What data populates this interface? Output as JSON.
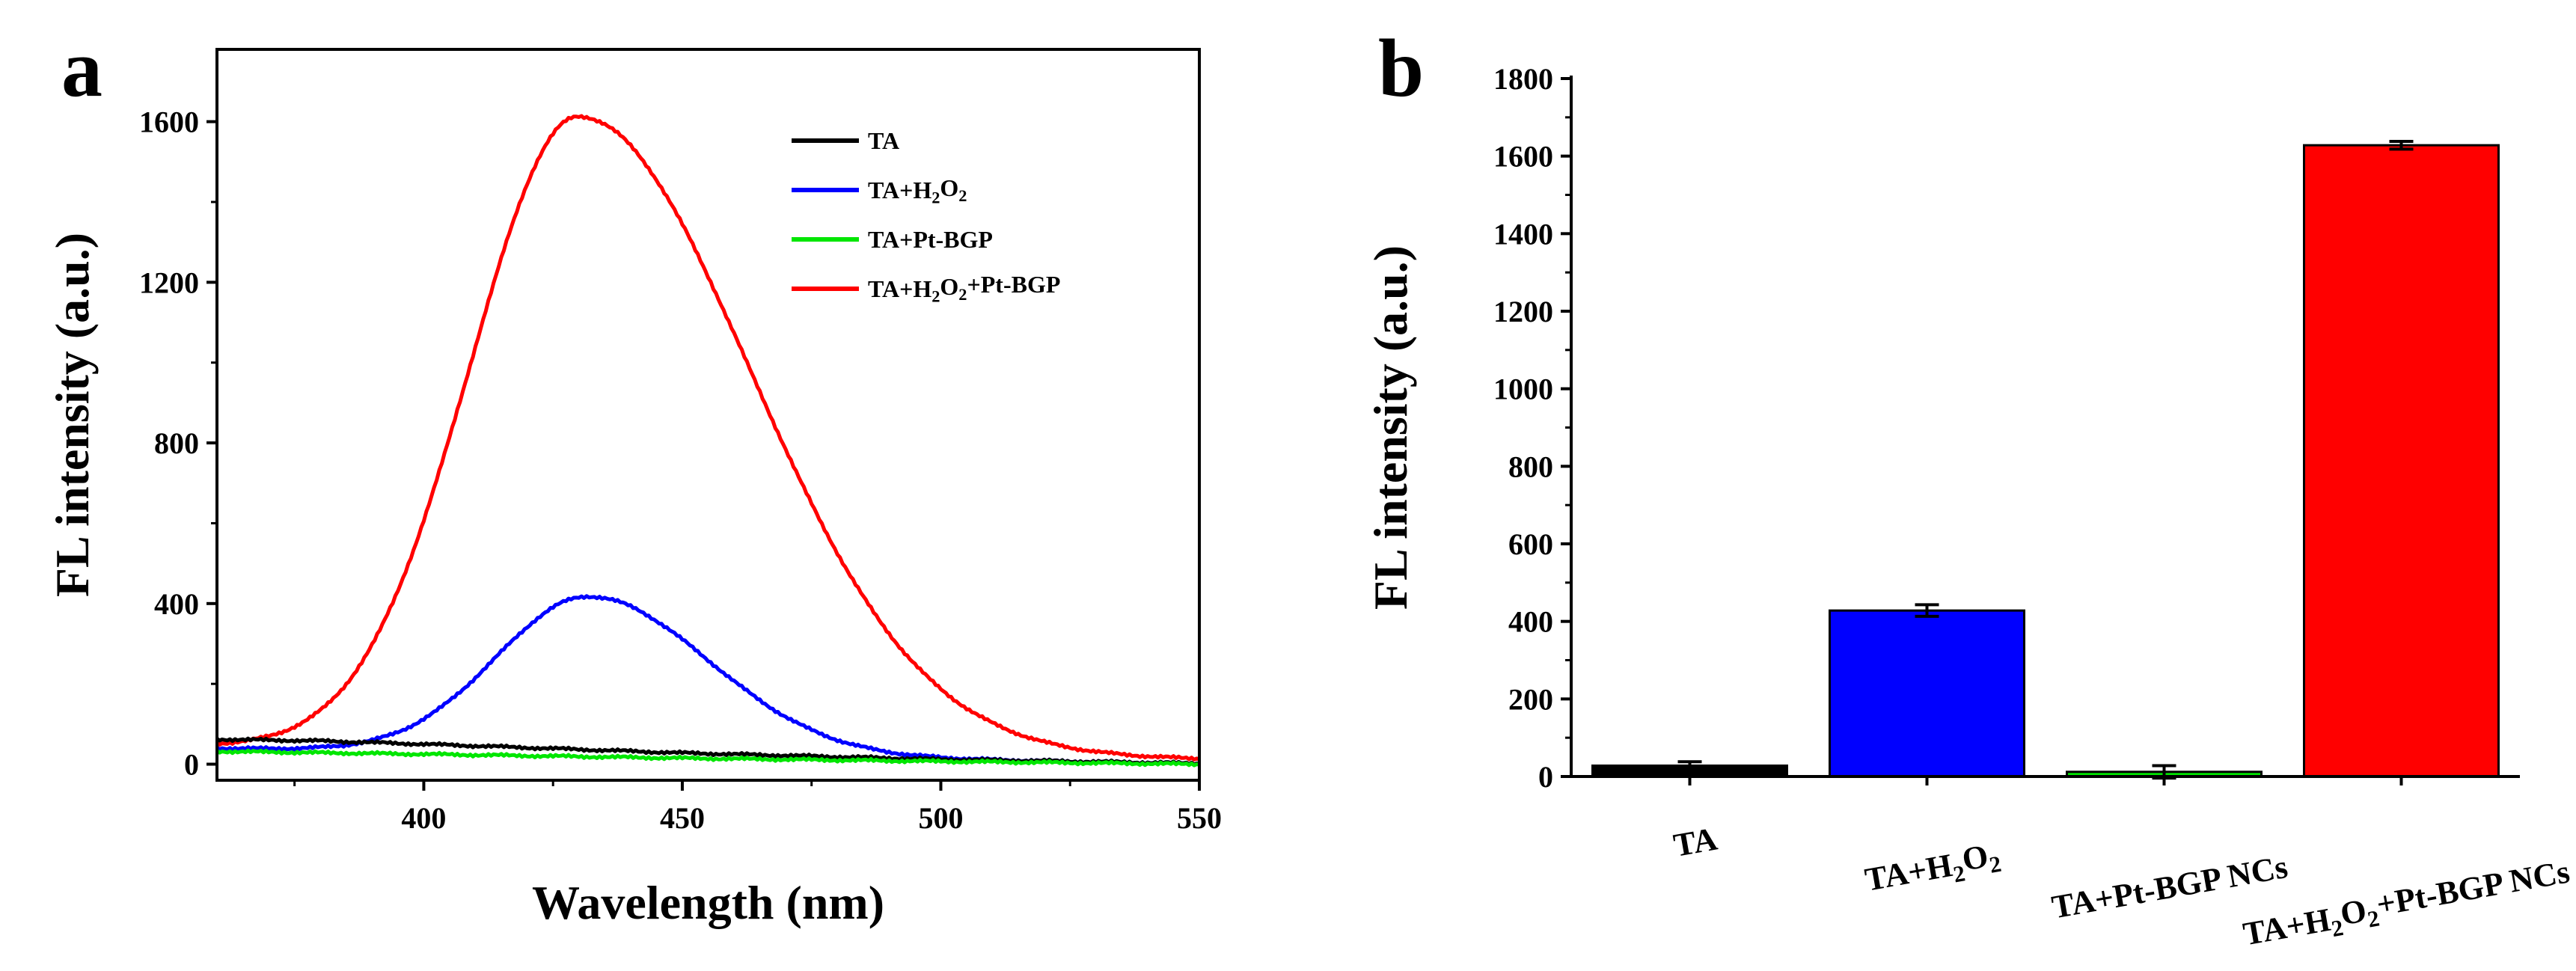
{
  "panels": {
    "a": {
      "letter": "a"
    },
    "b": {
      "letter": "b"
    }
  },
  "colors": {
    "TA": "#000000",
    "TA_H2O2": "#0000ff",
    "TA_PtBGP": "#00e600",
    "TA_H2O2_PtBGP": "#ff0000"
  },
  "chart_data": [
    {
      "type": "line",
      "panel": "a",
      "xlabel": "Wavelength (nm)",
      "ylabel": "FL intensity (a.u.)",
      "xlim": [
        360,
        550
      ],
      "ylim": [
        -40,
        1780
      ],
      "xticks": [
        400,
        450,
        500,
        550
      ],
      "yticks": [
        0,
        400,
        800,
        1200,
        1600
      ],
      "legend_position": "top-right",
      "series": [
        {
          "key": "TA",
          "name": "TA",
          "label_parts": [
            [
              "TA",
              ""
            ]
          ],
          "color": "#000000",
          "x": [
            360,
            380,
            400,
            450,
            500,
            550
          ],
          "y": [
            62,
            58,
            50,
            28,
            12,
            2
          ]
        },
        {
          "key": "TA_H2O2",
          "name": "TA+H2O2",
          "label_parts": [
            [
              "TA+H",
              ""
            ],
            [
              "2",
              "sub"
            ],
            [
              "O",
              ""
            ],
            [
              "2",
              "sub"
            ]
          ],
          "color": "#0000ff",
          "peak": 432,
          "amplitude": 392,
          "width_left": 18,
          "width_right": 23,
          "baseline_left": 40,
          "baseline_right": 2
        },
        {
          "key": "TA_PtBGP",
          "name": "TA+Pt-BGP",
          "label_parts": [
            [
              "TA+Pt-BGP",
              ""
            ]
          ],
          "color": "#00e600",
          "x": [
            360,
            400,
            450,
            500,
            550
          ],
          "y": [
            32,
            25,
            15,
            7,
            0
          ]
        },
        {
          "key": "TA_H2O2_PtBGP",
          "name": "TA+H2O2+Pt-BGP",
          "label_parts": [
            [
              "TA+H",
              ""
            ],
            [
              "2",
              "sub"
            ],
            [
              "O",
              ""
            ],
            [
              "2",
              "sub"
            ],
            [
              "+Pt-BGP",
              ""
            ]
          ],
          "color": "#ff0000",
          "peak": 430,
          "amplitude": 1580,
          "width_left": 21,
          "width_right": 33,
          "baseline_left": 45,
          "baseline_right": 12
        }
      ]
    },
    {
      "type": "bar",
      "panel": "b",
      "xlabel": "",
      "ylabel": "FL intensity (a.u.)",
      "ylim": [
        0,
        1800
      ],
      "yticks": [
        0,
        200,
        400,
        600,
        800,
        1000,
        1200,
        1400,
        1600,
        1800
      ],
      "categories": [
        "TA",
        "TA+H2O2",
        "TA+Pt-BGP NCs",
        "TA+H2O2+Pt-BGP NCs"
      ],
      "category_parts": [
        [
          [
            "TA",
            ""
          ]
        ],
        [
          [
            "TA+H",
            ""
          ],
          [
            "2",
            "sub"
          ],
          [
            "O",
            ""
          ],
          [
            "2",
            "sub"
          ]
        ],
        [
          [
            "TA+Pt-BGP NCs",
            ""
          ]
        ],
        [
          [
            "TA+H",
            ""
          ],
          [
            "2",
            "sub"
          ],
          [
            "O",
            ""
          ],
          [
            "2",
            "sub"
          ],
          [
            "+Pt-BGP NCs",
            ""
          ]
        ]
      ],
      "values": [
        28,
        428,
        12,
        1628
      ],
      "errors": [
        10,
        15,
        16,
        10
      ],
      "colors": [
        "#000000",
        "#0000ff",
        "#00e600",
        "#ff0000"
      ]
    }
  ]
}
